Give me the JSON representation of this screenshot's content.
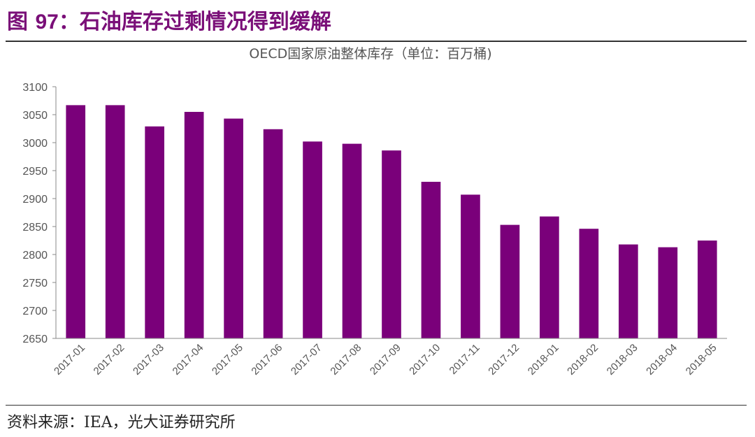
{
  "figure": {
    "label": "图",
    "number": "97",
    "title": "：石油库存过剩情况得到缓解"
  },
  "source": "资料来源：IEA，光大证券研究所",
  "colors": {
    "bar": "#7a007a",
    "title": "#7a0f78",
    "axis": "#888888"
  },
  "chart_data": {
    "type": "bar",
    "title": "OECD国家原油整体库存（单位：百万桶)",
    "xlabel": "",
    "ylabel": "",
    "ylim": [
      2650,
      3100
    ],
    "yticks": [
      2650,
      2700,
      2750,
      2800,
      2850,
      2900,
      2950,
      3000,
      3050,
      3100
    ],
    "grid": false,
    "legend": "none",
    "categories": [
      "2017-01",
      "2017-02",
      "2017-03",
      "2017-04",
      "2017-05",
      "2017-06",
      "2017-07",
      "2017-08",
      "2017-09",
      "2017-10",
      "2017-11",
      "2017-12",
      "2018-01",
      "2018-02",
      "2018-03",
      "2018-04",
      "2018-05"
    ],
    "values": [
      3067,
      3067,
      3029,
      3055,
      3043,
      3024,
      3002,
      2998,
      2986,
      2930,
      2907,
      2853,
      2868,
      2846,
      2818,
      2813,
      2825
    ]
  }
}
